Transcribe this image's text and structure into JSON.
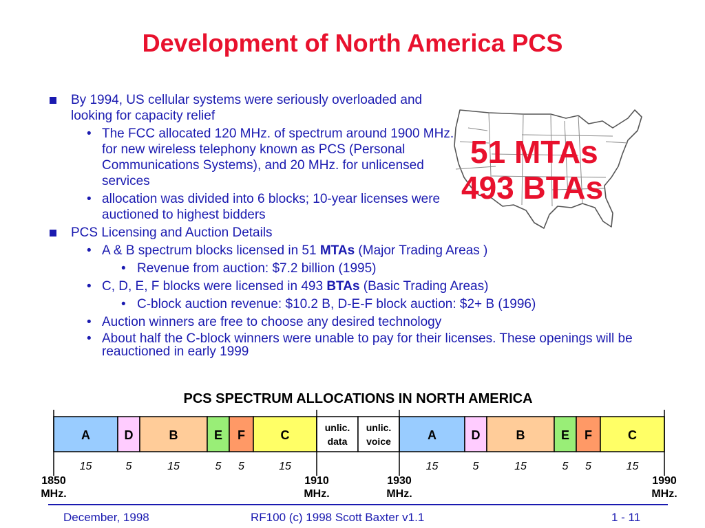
{
  "title": "Development of North America PCS",
  "bullets": {
    "b1": "By 1994, US cellular systems were seriously overloaded and looking for capacity relief",
    "b1_sub1": "The FCC allocated 120 MHz. of spectrum around 1900 MHz. for new wireless telephony known as PCS (Personal Communications Systems), and 20 MHz. for unlicensed services",
    "b1_sub2": "allocation was divided into 6 blocks; 10-year licenses were auctioned to highest bidders",
    "b2": "PCS Licensing and Auction Details",
    "b2_sub1_pre": "A & B spectrum blocks licensed in 51 ",
    "b2_sub1_kw": "MTAs",
    "b2_sub1_post": " (Major Trading Areas )",
    "b2_sub1_sub": "Revenue from auction:  $7.2 billion (1995)",
    "b2_sub2_pre": "C, D, E, F blocks were licensed in 493 ",
    "b2_sub2_kw": "BTAs",
    "b2_sub2_post": " (Basic Trading Areas)",
    "b2_sub2_sub": "C-block auction revenue: $10.2 B, D-E-F block auction: $2+ B (1996)",
    "b2_sub3": "Auction winners are free to choose any desired technology",
    "b2_sub4": "About half the C-block winners were unable to pay for their licenses.  These openings will be reauctioned in early 1999"
  },
  "map_labels": {
    "line1": "51 MTAs",
    "line2": "493 BTAs"
  },
  "chart_data": {
    "type": "table",
    "title": "PCS SPECTRUM ALLOCATIONS IN NORTH AMERICA",
    "blocks": [
      {
        "label": "A",
        "mhz": "15",
        "color": "#99ccff"
      },
      {
        "label": "D",
        "mhz": "5",
        "color": "#ffccff"
      },
      {
        "label": "B",
        "mhz": "15",
        "color": "#ffcc99"
      },
      {
        "label": "E",
        "mhz": "5",
        "color": "#99ee77"
      },
      {
        "label": "F",
        "mhz": "5",
        "color": "#ff9966"
      },
      {
        "label": "C",
        "mhz": "15",
        "color": "#ffff66"
      },
      {
        "label": [
          "unlic.",
          "data"
        ],
        "mhz": "",
        "color": "#ffffff"
      },
      {
        "label": [
          "unlic.",
          "voice"
        ],
        "mhz": "",
        "color": "#ffffff"
      },
      {
        "label": "A",
        "mhz": "15",
        "color": "#99ccff"
      },
      {
        "label": "D",
        "mhz": "5",
        "color": "#ffccff"
      },
      {
        "label": "B",
        "mhz": "15",
        "color": "#ffcc99"
      },
      {
        "label": "E",
        "mhz": "5",
        "color": "#99ee77"
      },
      {
        "label": "F",
        "mhz": "5",
        "color": "#ff9966"
      },
      {
        "label": "C",
        "mhz": "15",
        "color": "#ffff66"
      }
    ],
    "freq_markers": [
      {
        "value": "1850",
        "unit": "MHz."
      },
      {
        "value": "1910",
        "unit": "MHz."
      },
      {
        "value": "1930",
        "unit": "MHz."
      },
      {
        "value": "1990",
        "unit": "MHz."
      }
    ]
  },
  "footer": {
    "left": "December, 1998",
    "center": "RF100 (c) 1998 Scott Baxter v1.1",
    "right": "1 - 11"
  },
  "colors": {
    "title": "#e8112d",
    "text": "#1a1ab0"
  }
}
